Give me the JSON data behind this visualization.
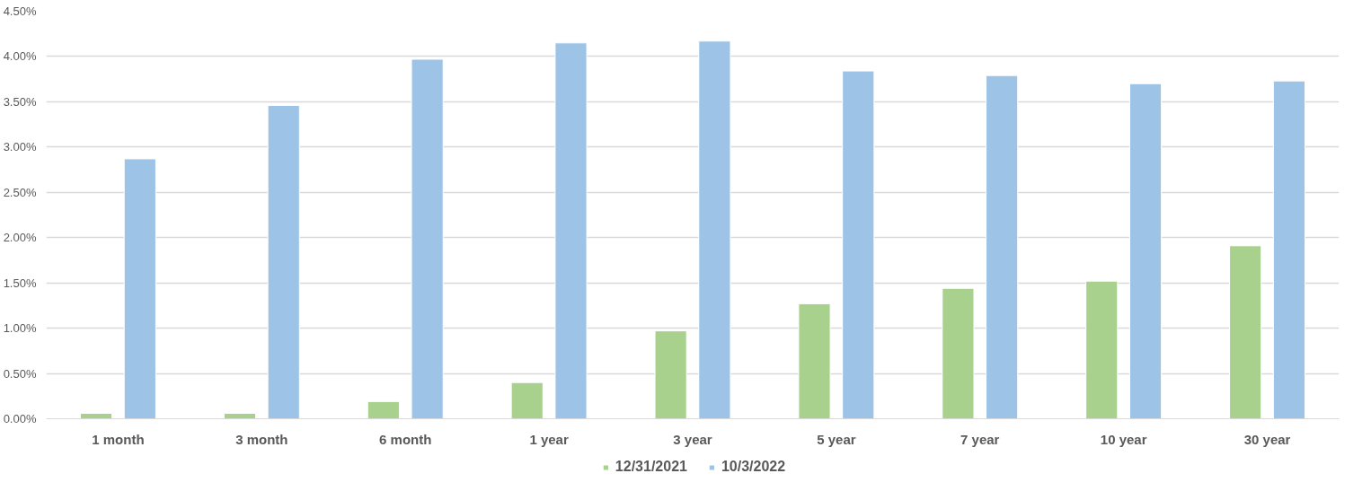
{
  "chart_data": {
    "type": "bar",
    "categories": [
      "1 month",
      "3 month",
      "6 month",
      "1 year",
      "3 year",
      "5 year",
      "7 year",
      "10 year",
      "30 year"
    ],
    "series": [
      {
        "name": "12/31/2021",
        "color": "#a9d18e",
        "values": [
          0.06,
          0.06,
          0.19,
          0.4,
          0.97,
          1.27,
          1.44,
          1.52,
          1.91
        ]
      },
      {
        "name": "10/3/2022",
        "color": "#9dc3e6",
        "values": [
          2.87,
          3.46,
          3.97,
          4.15,
          4.17,
          3.84,
          3.79,
          3.7,
          3.73
        ]
      }
    ],
    "ylim": [
      0,
      4.5
    ],
    "yticks": [
      {
        "value": 0,
        "label": "0.00%"
      },
      {
        "value": 0.5,
        "label": "0.50%"
      },
      {
        "value": 1,
        "label": "1.00%"
      },
      {
        "value": 1.5,
        "label": "1.50%"
      },
      {
        "value": 2,
        "label": "2.00%"
      },
      {
        "value": 2.5,
        "label": "2.50%"
      },
      {
        "value": 3,
        "label": "3.00%"
      },
      {
        "value": 3.5,
        "label": "3.50%"
      },
      {
        "value": 4,
        "label": "4.00%"
      },
      {
        "value": 4.5,
        "label": "4.50%"
      }
    ],
    "grid": "y",
    "legend": "bottom"
  }
}
